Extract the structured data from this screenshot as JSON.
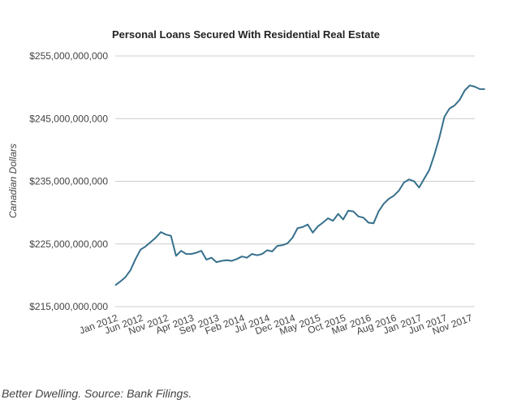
{
  "source_note": "Better Dwelling. Source: Bank Filings.",
  "chart_data": {
    "type": "line",
    "title": "Personal Loans Secured With Residential Real Estate",
    "xlabel": "",
    "ylabel": "Canadian Dollars",
    "ylim": [
      215000000000,
      255000000000
    ],
    "yticks": [
      215000000000,
      225000000000,
      235000000000,
      245000000000,
      255000000000
    ],
    "ytick_labels": [
      "$215,000,000,000",
      "$225,000,000,000",
      "$235,000,000,000",
      "$245,000,000,000",
      "$255,000,000,000"
    ],
    "xticks": [
      "Jan 2012",
      "Jun 2012",
      "Nov 2012",
      "Apr 2013",
      "Sep 2013",
      "Feb 2014",
      "Jul 2014",
      "Dec 2014",
      "May 2015",
      "Oct 2015",
      "Mar 2016",
      "Aug 2016",
      "Jan 2017",
      "Jun 2017",
      "Nov 2017"
    ],
    "grid": true,
    "legend": "none",
    "series_color": "#36708c",
    "series": [
      {
        "x": [
          "2012-01",
          "2012-02",
          "2012-03",
          "2012-04",
          "2012-05",
          "2012-06",
          "2012-07",
          "2012-08",
          "2012-09",
          "2012-10",
          "2012-11",
          "2012-12",
          "2013-01",
          "2013-02",
          "2013-03",
          "2013-04",
          "2013-05",
          "2013-06",
          "2013-07",
          "2013-08",
          "2013-09",
          "2013-10",
          "2013-11",
          "2013-12",
          "2014-01",
          "2014-02",
          "2014-03",
          "2014-04",
          "2014-05",
          "2014-06",
          "2014-07",
          "2014-08",
          "2014-09",
          "2014-10",
          "2014-11",
          "2014-12",
          "2015-01",
          "2015-02",
          "2015-03",
          "2015-04",
          "2015-05",
          "2015-06",
          "2015-07",
          "2015-08",
          "2015-09",
          "2015-10",
          "2015-11",
          "2015-12",
          "2016-01",
          "2016-02",
          "2016-03",
          "2016-04",
          "2016-05",
          "2016-06",
          "2016-07",
          "2016-08",
          "2016-09",
          "2016-10",
          "2016-11",
          "2016-12",
          "2017-01",
          "2017-02",
          "2017-03",
          "2017-04",
          "2017-05",
          "2017-06",
          "2017-07",
          "2017-08",
          "2017-09",
          "2017-10",
          "2017-11",
          "2017-12",
          "2018-01",
          "2018-02"
        ],
        "values": [
          218400000000,
          219000000000,
          219700000000,
          220800000000,
          222600000000,
          224100000000,
          224600000000,
          225300000000,
          226000000000,
          226900000000,
          226500000000,
          226300000000,
          223100000000,
          223900000000,
          223400000000,
          223400000000,
          223600000000,
          223900000000,
          222500000000,
          222800000000,
          222100000000,
          222300000000,
          222400000000,
          222300000000,
          222600000000,
          223000000000,
          222800000000,
          223400000000,
          223200000000,
          223400000000,
          224000000000,
          223800000000,
          224700000000,
          224800000000,
          225100000000,
          226000000000,
          227500000000,
          227700000000,
          228100000000,
          226800000000,
          227800000000,
          228400000000,
          229100000000,
          228700000000,
          229800000000,
          228900000000,
          230300000000,
          230200000000,
          229400000000,
          229200000000,
          228400000000,
          228300000000,
          230200000000,
          231400000000,
          232200000000,
          232700000000,
          233500000000,
          234800000000,
          235300000000,
          235000000000,
          234000000000,
          235400000000,
          236800000000,
          239200000000,
          242000000000,
          245300000000,
          246600000000,
          247100000000,
          248000000000,
          249500000000,
          250300000000,
          250100000000,
          249700000000,
          249700000000
        ]
      }
    ]
  }
}
